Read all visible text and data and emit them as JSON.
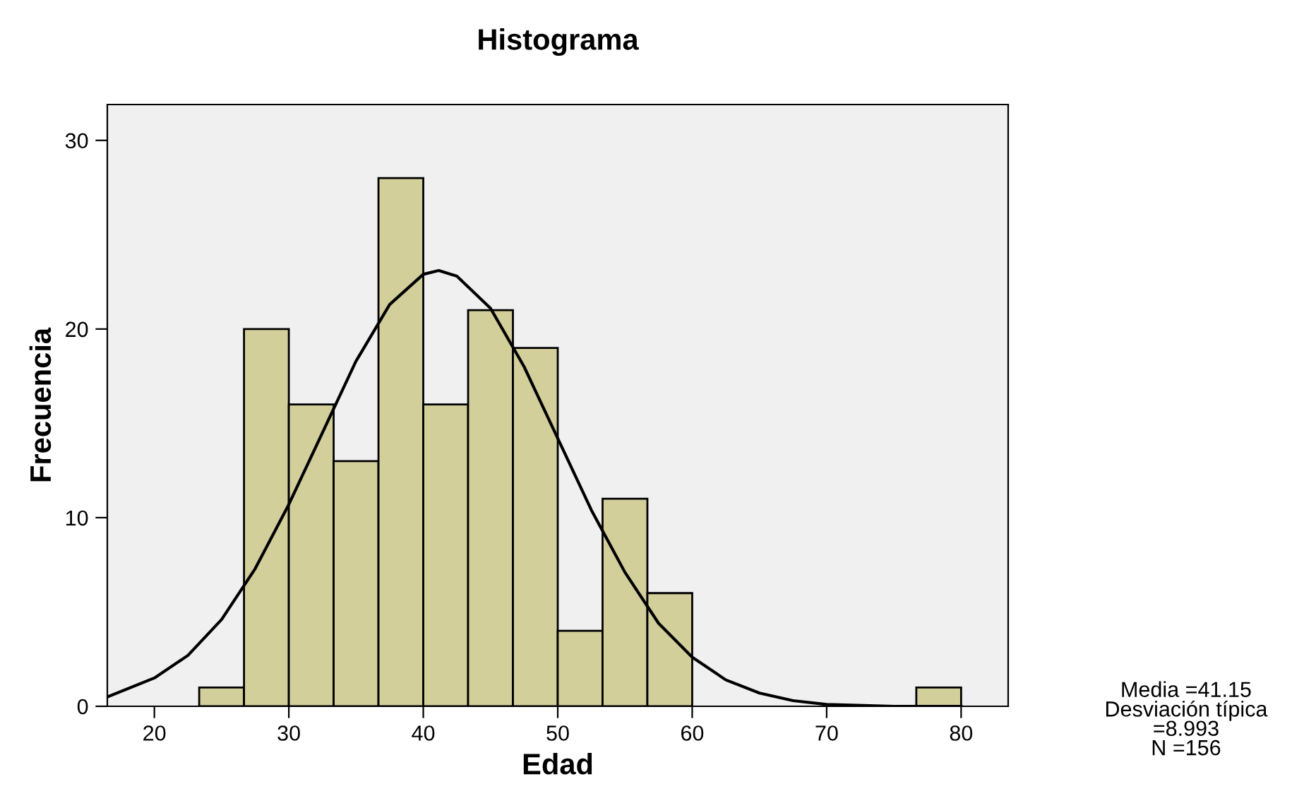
{
  "chart_data": {
    "type": "histogram",
    "title": "Histograma",
    "xlabel": "Edad",
    "ylabel": "Frecuencia",
    "series": [
      {
        "color": "#d3cf9b",
        "bins": [
          23.333,
          26.667,
          30,
          33.333,
          36.667,
          40,
          43.333,
          46.667,
          50,
          53.333,
          56.667,
          60,
          63.333,
          66.667,
          70,
          73.333,
          76.667,
          80
        ],
        "values": [
          1,
          20,
          16,
          13,
          28,
          16,
          21,
          19,
          4,
          11,
          6,
          0,
          0,
          0,
          0,
          0,
          1
        ]
      },
      {
        "type": "line",
        "color": "#000000",
        "x": [
          16.5,
          20,
          22.5,
          25,
          27.5,
          30,
          32.5,
          35,
          37.5,
          40,
          41.15,
          42.5,
          45,
          47.5,
          50,
          52.5,
          55,
          57.5,
          60,
          62.5,
          65,
          67.5,
          70,
          75,
          80
        ],
        "values": [
          0.5,
          1.5,
          2.7,
          4.6,
          7.3,
          10.7,
          14.5,
          18.3,
          21.3,
          22.9,
          23.1,
          22.8,
          21.1,
          18.0,
          14.2,
          10.4,
          7.1,
          4.4,
          2.6,
          1.4,
          0.7,
          0.3,
          0.1,
          0.0,
          0.0
        ]
      }
    ],
    "xlim": [
      16.5,
      83.5
    ],
    "ylim": [
      0,
      31.9
    ],
    "xticks": [
      20,
      30,
      40,
      50,
      60,
      70,
      80
    ],
    "yticks": [
      0,
      10,
      20,
      30
    ],
    "grid": false,
    "legend": false,
    "marker": "none",
    "line_style": "solid",
    "annotations": [
      "Media =41.15",
      "Desviación típica\n=8.993",
      "N =156"
    ]
  }
}
